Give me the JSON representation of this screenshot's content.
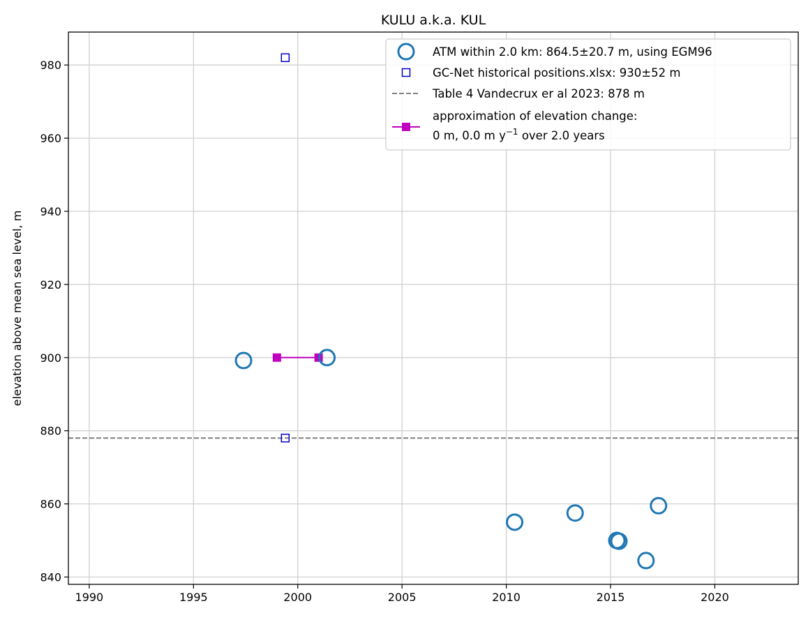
{
  "chart_data": {
    "type": "scatter",
    "title": "KULU a.k.a. KUL",
    "xlabel": "",
    "ylabel": "elevation above mean sea level, m",
    "xlim": [
      1989,
      2024
    ],
    "ylim": [
      838,
      989
    ],
    "xticks": [
      1990,
      1995,
      2000,
      2005,
      2010,
      2015,
      2020
    ],
    "yticks": [
      840,
      860,
      880,
      900,
      920,
      940,
      960,
      980
    ],
    "grid": true,
    "legend_position": "top-right",
    "series": [
      {
        "name": "ATM within 2.0 km: 864.5±20.7 m, using EGM96",
        "marker": "circle-open",
        "color": "#1f77b4",
        "points": [
          {
            "x": 1997.4,
            "y": 899.2
          },
          {
            "x": 2001.4,
            "y": 900.0
          },
          {
            "x": 2010.4,
            "y": 855.0
          },
          {
            "x": 2013.3,
            "y": 857.5
          },
          {
            "x": 2015.3,
            "y": 850.0
          },
          {
            "x": 2015.4,
            "y": 849.8
          },
          {
            "x": 2016.7,
            "y": 844.5
          },
          {
            "x": 2017.3,
            "y": 859.5
          }
        ]
      },
      {
        "name": "GC-Net historical positions.xlsx: 930±52 m",
        "marker": "square-open",
        "color": "#0000cc",
        "points": [
          {
            "x": 1999.4,
            "y": 982.0
          },
          {
            "x": 1999.4,
            "y": 878.0
          }
        ]
      },
      {
        "name": "Table 4 Vandecrux er al 2023: 878 m",
        "marker": "dashed-hline",
        "color": "#7f7f7f",
        "y": 878
      },
      {
        "name_line1": "approximation of elevation change:",
        "name_line2_prefix": "0 m, 0.0 m y",
        "name_line2_sup": "−1",
        "name_line2_suffix": " over 2.0 years",
        "marker": "square-line",
        "color": "#bf00bf",
        "points": [
          {
            "x": 1999.0,
            "y": 900.0
          },
          {
            "x": 2001.0,
            "y": 900.0
          }
        ]
      }
    ]
  }
}
